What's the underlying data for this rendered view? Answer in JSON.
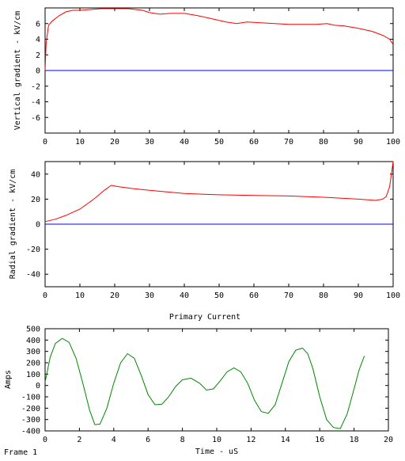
{
  "frame_label": "Frame 1",
  "chart_data": [
    {
      "type": "line",
      "title": "",
      "xlabel": "",
      "ylabel": "Vertical gradient - kV/cm",
      "xlim": [
        0,
        100
      ],
      "ylim": [
        -8,
        8
      ],
      "x_ticks": [
        0,
        10,
        20,
        30,
        40,
        50,
        60,
        70,
        80,
        90,
        100
      ],
      "y_ticks": [
        -6,
        -4,
        -2,
        0,
        2,
        4,
        6
      ],
      "grid": false,
      "series": [
        {
          "color": "#ff0000",
          "x": [
            0,
            0.3,
            1,
            2,
            4,
            6,
            8,
            10,
            13,
            16,
            20,
            24,
            28,
            30,
            33,
            36,
            40,
            44,
            48,
            52,
            55,
            58,
            62,
            66,
            70,
            74,
            78,
            81,
            83,
            86,
            90,
            94,
            97,
            99,
            100
          ],
          "y": [
            0,
            3.5,
            5.8,
            6.3,
            7.0,
            7.5,
            7.7,
            7.7,
            7.8,
            7.9,
            7.9,
            7.9,
            7.7,
            7.4,
            7.2,
            7.3,
            7.3,
            7.0,
            6.6,
            6.2,
            6.0,
            6.2,
            6.1,
            6.0,
            5.9,
            5.9,
            5.9,
            6.0,
            5.8,
            5.7,
            5.4,
            5.0,
            4.5,
            4.0,
            3.3
          ]
        },
        {
          "color": "#0000ff",
          "x": [
            0,
            100
          ],
          "y": [
            0,
            0
          ]
        }
      ]
    },
    {
      "type": "line",
      "title": "",
      "xlabel": "",
      "ylabel": "Radial gradient - kV/cm",
      "xlim": [
        0,
        100
      ],
      "ylim": [
        -50,
        50
      ],
      "x_ticks": [
        0,
        10,
        20,
        30,
        40,
        50,
        60,
        70,
        80,
        90,
        100
      ],
      "y_ticks": [
        -40,
        -20,
        0,
        20,
        40
      ],
      "grid": false,
      "series": [
        {
          "color": "#ff0000",
          "x": [
            0,
            3,
            6,
            10,
            14,
            17,
            19,
            21,
            25,
            30,
            40,
            50,
            60,
            70,
            80,
            90,
            95,
            97,
            98,
            99,
            99.5,
            100
          ],
          "y": [
            2,
            4,
            7,
            12,
            20,
            27,
            31,
            30,
            28.5,
            27,
            24.5,
            23.5,
            23,
            22.5,
            21.5,
            20,
            19,
            20,
            22,
            30,
            40,
            50
          ]
        },
        {
          "color": "#0000ff",
          "x": [
            0,
            100
          ],
          "y": [
            0,
            0
          ]
        }
      ]
    },
    {
      "type": "line",
      "title": "Primary Current",
      "xlabel": "Time - uS",
      "ylabel": "Amps",
      "xlim": [
        0,
        20
      ],
      "ylim": [
        -400,
        500
      ],
      "x_ticks": [
        0,
        2,
        4,
        6,
        8,
        10,
        12,
        14,
        16,
        18,
        20
      ],
      "y_ticks": [
        -400,
        -300,
        -200,
        -100,
        0,
        100,
        200,
        300,
        400,
        500
      ],
      "grid": false,
      "series": [
        {
          "color": "#008800",
          "x": [
            0,
            0.3,
            0.6,
            1.0,
            1.4,
            1.8,
            2.2,
            2.6,
            2.9,
            3.2,
            3.6,
            4.0,
            4.4,
            4.8,
            5.2,
            5.6,
            6.0,
            6.4,
            6.8,
            7.2,
            7.6,
            8.0,
            8.5,
            9.0,
            9.4,
            9.8,
            10.2,
            10.6,
            11.0,
            11.4,
            11.8,
            12.2,
            12.6,
            13.0,
            13.4,
            13.8,
            14.2,
            14.6,
            15.0,
            15.3,
            15.6,
            16.0,
            16.4,
            16.8,
            17.2,
            17.6,
            18.0,
            18.3,
            18.6
          ],
          "y": [
            30,
            250,
            370,
            415,
            380,
            240,
            20,
            -220,
            -345,
            -340,
            -200,
            20,
            200,
            280,
            240,
            90,
            -80,
            -170,
            -165,
            -100,
            -10,
            50,
            65,
            20,
            -40,
            -30,
            40,
            120,
            155,
            120,
            20,
            -130,
            -230,
            -245,
            -170,
            20,
            210,
            310,
            330,
            280,
            150,
            -100,
            -300,
            -370,
            -380,
            -250,
            -30,
            140,
            260
          ]
        }
      ]
    }
  ]
}
